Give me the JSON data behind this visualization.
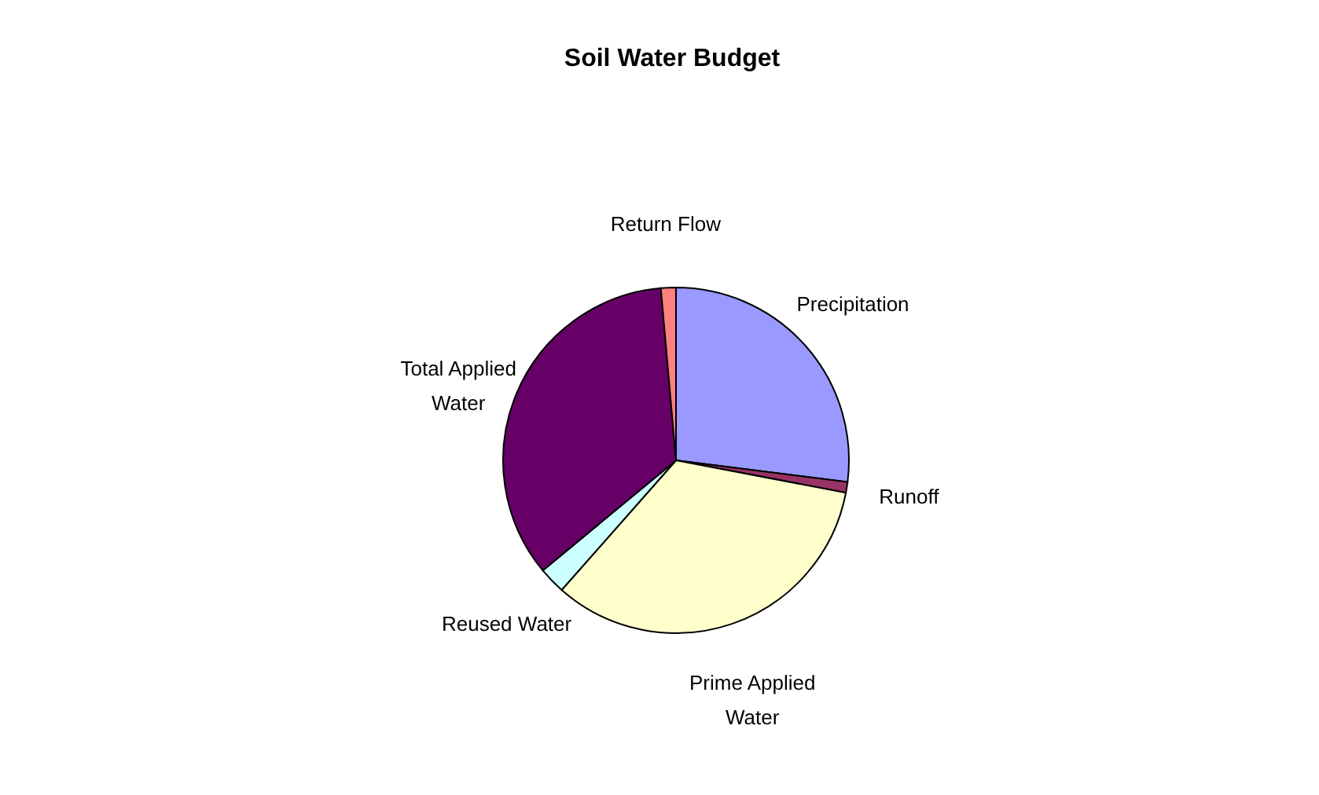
{
  "chart_data": {
    "type": "pie",
    "title": "Soil Water Budget",
    "categories": [
      "Precipitation",
      "Runoff",
      "Prime Applied Water",
      "Reused Water",
      "Total Applied Water",
      "Return Flow"
    ],
    "values": [
      27,
      1,
      33.5,
      2.5,
      34.6,
      1.4
    ],
    "colors": [
      "#9999ff",
      "#993366",
      "#ffffcc",
      "#ccffff",
      "#660066",
      "#ff8080"
    ],
    "legend": false
  }
}
